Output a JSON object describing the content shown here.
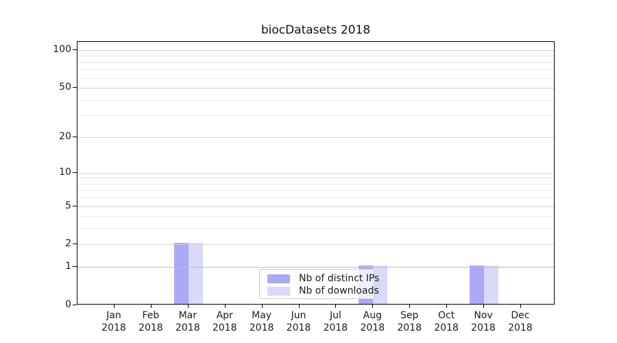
{
  "title": "biocDatasets 2018",
  "colors": {
    "distinct_ips": "#a9a9f8",
    "downloads": "#d9d9f9",
    "axis": "#000000",
    "grid_major": "#d2d2d2",
    "grid_major_dark": "#bdbdbd",
    "grid_minor": "#e9e9e9",
    "legend_border": "#cccccc",
    "text": "#1a1a1a"
  },
  "chart_data": {
    "type": "bar",
    "title": "biocDatasets 2018",
    "categories": [
      "Jan",
      "Feb",
      "Mar",
      "Apr",
      "May",
      "Jun",
      "Jul",
      "Aug",
      "Sep",
      "Oct",
      "Nov",
      "Dec"
    ],
    "x_year_label": "2018",
    "series": [
      {
        "name": "Nb of distinct IPs",
        "color": "#a9a9f8",
        "values": [
          0,
          0,
          2,
          0,
          0,
          0,
          0,
          1,
          0,
          0,
          1,
          0
        ]
      },
      {
        "name": "Nb of downloads",
        "color": "#d9d9f9",
        "values": [
          0,
          0,
          2,
          0,
          0,
          0,
          0,
          1,
          0,
          0,
          1,
          0
        ]
      }
    ],
    "yscale": "log1p",
    "ylim": [
      0,
      113
    ],
    "y_ticks": [
      {
        "v": 0,
        "label": "0"
      },
      {
        "v": 1,
        "label": "1"
      },
      {
        "v": 2,
        "label": "2"
      },
      {
        "v": 5,
        "label": "5"
      },
      {
        "v": 10,
        "label": "10"
      },
      {
        "v": 20,
        "label": "20"
      },
      {
        "v": 50,
        "label": "50"
      },
      {
        "v": 100,
        "label": "100"
      }
    ],
    "y_minor_gridlines": [
      3,
      4,
      6,
      7,
      8,
      9,
      30,
      40,
      60,
      70,
      80,
      90
    ],
    "grid": true,
    "legend_position": "lower center",
    "xlabel": "",
    "ylabel": ""
  }
}
